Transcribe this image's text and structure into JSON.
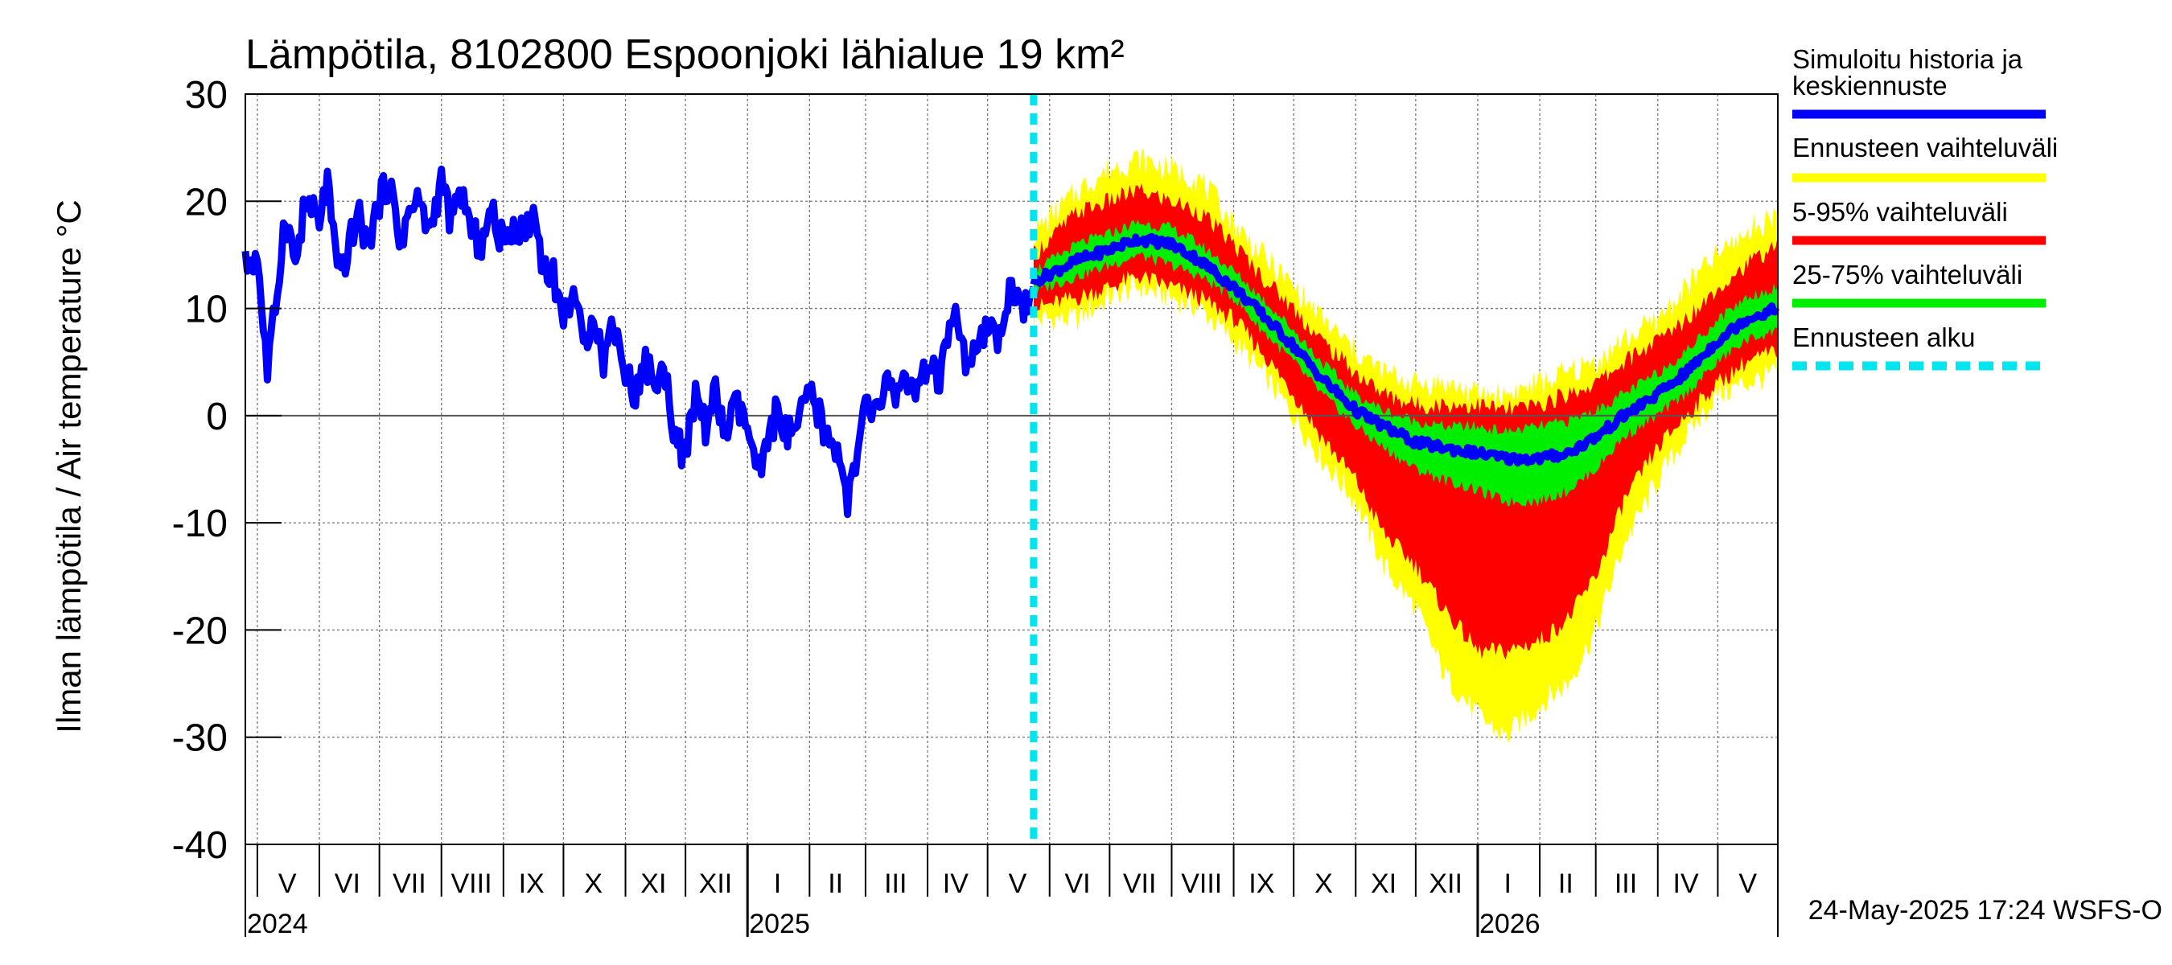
{
  "chart_data": {
    "type": "area",
    "title": "Lämpötila, 8102800 Espoonjoki lähialue 19 km²",
    "ylabel": "Ilman lämpötila / Air temperature    °C",
    "ylim": [
      -40,
      30
    ],
    "yticks": [
      30,
      20,
      10,
      0,
      -10,
      -20,
      -30,
      -40
    ],
    "grid": true,
    "x_start": "2024-04-25",
    "x_end": "2026-05-31",
    "forecast_start": "2025-05-24",
    "month_labels": [
      {
        "date": "2024-05-16",
        "label": "V"
      },
      {
        "date": "2024-06-15",
        "label": "VI"
      },
      {
        "date": "2024-07-16",
        "label": "VII"
      },
      {
        "date": "2024-08-16",
        "label": "VIII"
      },
      {
        "date": "2024-09-15",
        "label": "IX"
      },
      {
        "date": "2024-10-16",
        "label": "X"
      },
      {
        "date": "2024-11-15",
        "label": "XI"
      },
      {
        "date": "2024-12-16",
        "label": "XII"
      },
      {
        "date": "2025-01-16",
        "label": "I"
      },
      {
        "date": "2025-02-14",
        "label": "II"
      },
      {
        "date": "2025-03-16",
        "label": "III"
      },
      {
        "date": "2025-04-15",
        "label": "IV"
      },
      {
        "date": "2025-05-16",
        "label": "V"
      },
      {
        "date": "2025-06-15",
        "label": "VI"
      },
      {
        "date": "2025-07-16",
        "label": "VII"
      },
      {
        "date": "2025-08-16",
        "label": "VIII"
      },
      {
        "date": "2025-09-15",
        "label": "IX"
      },
      {
        "date": "2025-10-16",
        "label": "X"
      },
      {
        "date": "2025-11-15",
        "label": "XI"
      },
      {
        "date": "2025-12-16",
        "label": "XII"
      },
      {
        "date": "2026-01-16",
        "label": "I"
      },
      {
        "date": "2026-02-14",
        "label": "II"
      },
      {
        "date": "2026-03-16",
        "label": "III"
      },
      {
        "date": "2026-04-15",
        "label": "IV"
      },
      {
        "date": "2026-05-16",
        "label": "V"
      }
    ],
    "year_labels": [
      {
        "date": "2024-04-25",
        "label": "2024"
      },
      {
        "date": "2025-01-01",
        "label": "2025"
      },
      {
        "date": "2026-01-01",
        "label": "2026"
      }
    ],
    "legend": [
      {
        "label": "Simuloitu historia ja keskiennuste",
        "color": "#0000ff",
        "style": "solid"
      },
      {
        "label": "Ennusteen vaihteluväli",
        "color": "#ffff00",
        "style": "solid"
      },
      {
        "label": "5-95% vaihteluväli",
        "color": "#ff0000",
        "style": "solid"
      },
      {
        "label": "25-75% vaihteluväli",
        "color": "#00ee00",
        "style": "solid"
      },
      {
        "label": "Ennusteen alku",
        "color": "#00e5ee",
        "style": "dashed"
      }
    ],
    "legend_position": "right",
    "history_series": {
      "name": "Simuloitu historia ja keskiennuste",
      "color": "#0000ff",
      "points": [
        [
          "2024-04-25",
          14
        ],
        [
          "2024-05-01",
          15
        ],
        [
          "2024-05-06",
          4
        ],
        [
          "2024-05-10",
          10
        ],
        [
          "2024-05-15",
          19
        ],
        [
          "2024-05-20",
          14
        ],
        [
          "2024-05-25",
          20
        ],
        [
          "2024-06-01",
          18
        ],
        [
          "2024-06-05",
          22
        ],
        [
          "2024-06-10",
          13
        ],
        [
          "2024-06-15",
          15
        ],
        [
          "2024-06-20",
          19
        ],
        [
          "2024-06-25",
          16
        ],
        [
          "2024-07-01",
          20
        ],
        [
          "2024-07-06",
          22
        ],
        [
          "2024-07-11",
          16
        ],
        [
          "2024-07-16",
          19
        ],
        [
          "2024-07-21",
          20
        ],
        [
          "2024-07-26",
          17
        ],
        [
          "2024-08-01",
          22
        ],
        [
          "2024-08-06",
          18
        ],
        [
          "2024-08-11",
          21
        ],
        [
          "2024-08-16",
          17
        ],
        [
          "2024-08-21",
          16
        ],
        [
          "2024-08-26",
          19
        ],
        [
          "2024-09-01",
          16
        ],
        [
          "2024-09-06",
          18
        ],
        [
          "2024-09-11",
          17
        ],
        [
          "2024-09-16",
          19
        ],
        [
          "2024-09-21",
          14
        ],
        [
          "2024-09-26",
          13
        ],
        [
          "2024-10-01",
          9
        ],
        [
          "2024-10-06",
          12
        ],
        [
          "2024-10-11",
          6
        ],
        [
          "2024-10-16",
          10
        ],
        [
          "2024-10-21",
          5
        ],
        [
          "2024-10-26",
          9
        ],
        [
          "2024-11-01",
          4
        ],
        [
          "2024-11-06",
          2
        ],
        [
          "2024-11-11",
          5
        ],
        [
          "2024-11-16",
          3
        ],
        [
          "2024-11-21",
          4
        ],
        [
          "2024-11-26",
          -2
        ],
        [
          "2024-12-01",
          -4
        ],
        [
          "2024-12-06",
          2
        ],
        [
          "2024-12-11",
          -1
        ],
        [
          "2024-12-16",
          2
        ],
        [
          "2024-12-21",
          -2
        ],
        [
          "2024-12-26",
          1
        ],
        [
          "2025-01-01",
          -1
        ],
        [
          "2025-01-06",
          -6
        ],
        [
          "2025-01-11",
          -3
        ],
        [
          "2025-01-16",
          1
        ],
        [
          "2025-01-21",
          -2
        ],
        [
          "2025-01-26",
          -1
        ],
        [
          "2025-02-01",
          2
        ],
        [
          "2025-02-06",
          0
        ],
        [
          "2025-02-11",
          -3
        ],
        [
          "2025-02-16",
          -3
        ],
        [
          "2025-02-20",
          -8
        ],
        [
          "2025-02-24",
          -5
        ],
        [
          "2025-03-01",
          1
        ],
        [
          "2025-03-06",
          0
        ],
        [
          "2025-03-11",
          3
        ],
        [
          "2025-03-16",
          2
        ],
        [
          "2025-03-21",
          4
        ],
        [
          "2025-03-26",
          1
        ],
        [
          "2025-04-01",
          5
        ],
        [
          "2025-04-06",
          3
        ],
        [
          "2025-04-11",
          7
        ],
        [
          "2025-04-16",
          9
        ],
        [
          "2025-04-21",
          4
        ],
        [
          "2025-04-26",
          6
        ],
        [
          "2025-05-01",
          8
        ],
        [
          "2025-05-06",
          7
        ],
        [
          "2025-05-11",
          11
        ],
        [
          "2025-05-16",
          12
        ],
        [
          "2025-05-20",
          10
        ],
        [
          "2025-05-24",
          12
        ]
      ]
    },
    "forecast_series": {
      "stats": [
        "min",
        "p5",
        "p25",
        "median",
        "p75",
        "p95",
        "max"
      ],
      "points": [
        [
          "2025-05-24",
          9,
          10,
          11.5,
          12.5,
          13.5,
          15,
          17
        ],
        [
          "2025-06-15",
          9,
          11,
          13,
          14.5,
          16,
          19,
          21
        ],
        [
          "2025-07-01",
          11,
          12,
          14,
          15.5,
          17,
          20,
          23
        ],
        [
          "2025-07-15",
          12,
          13,
          15,
          16.5,
          18,
          21,
          24
        ],
        [
          "2025-08-01",
          11,
          12,
          14,
          16,
          17.5,
          20,
          23
        ],
        [
          "2025-08-15",
          10,
          11,
          13,
          14.5,
          16,
          19,
          22
        ],
        [
          "2025-09-01",
          7,
          9,
          11,
          12,
          13.5,
          16,
          18
        ],
        [
          "2025-09-15",
          4,
          6,
          8,
          9.5,
          11,
          13,
          15
        ],
        [
          "2025-10-01",
          0,
          2,
          5,
          6.5,
          8,
          10,
          12
        ],
        [
          "2025-10-15",
          -4,
          -2,
          2,
          3.5,
          5,
          7,
          9
        ],
        [
          "2025-11-01",
          -8,
          -6,
          -1,
          0.5,
          2,
          4,
          6
        ],
        [
          "2025-11-15",
          -14,
          -11,
          -3,
          -1,
          0.5,
          2,
          4
        ],
        [
          "2025-12-01",
          -18,
          -14,
          -5,
          -2.5,
          -0.5,
          1,
          3
        ],
        [
          "2025-12-15",
          -24,
          -18,
          -6,
          -3,
          -1,
          1,
          3
        ],
        [
          "2026-01-01",
          -28,
          -22,
          -7,
          -3.5,
          -1,
          1,
          2
        ],
        [
          "2026-01-15",
          -30,
          -22,
          -8,
          -4,
          -1.5,
          0.5,
          2
        ],
        [
          "2026-02-01",
          -27,
          -21,
          -8,
          -4,
          -1,
          1,
          3
        ],
        [
          "2026-02-15",
          -25,
          -19,
          -7,
          -3.5,
          -0.5,
          2,
          4
        ],
        [
          "2026-03-01",
          -20,
          -15,
          -5,
          -2,
          0.5,
          3,
          5
        ],
        [
          "2026-03-15",
          -12,
          -8,
          -2,
          0,
          2,
          5,
          7
        ],
        [
          "2026-04-01",
          -6,
          -3,
          0,
          2,
          4,
          7,
          9
        ],
        [
          "2026-04-15",
          -2,
          0,
          2,
          4,
          6,
          9,
          12
        ],
        [
          "2026-05-01",
          2,
          3,
          5,
          7,
          9,
          12,
          15
        ],
        [
          "2026-05-15",
          3,
          5,
          7,
          9,
          11,
          14,
          17
        ],
        [
          "2026-05-31",
          4,
          6,
          8,
          10,
          12,
          16,
          19
        ]
      ]
    },
    "footer": "24-May-2025 17:24 WSFS-O"
  }
}
